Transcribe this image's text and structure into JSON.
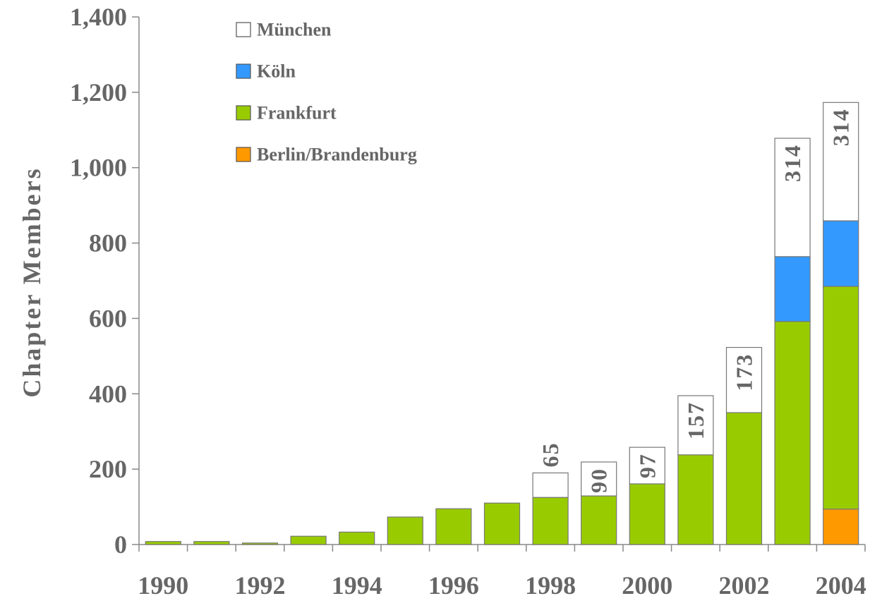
{
  "chart_data": {
    "type": "stacked_bar",
    "y_label": "Chapter Members",
    "categories": [
      "1990",
      null,
      "1992",
      null,
      "1994",
      null,
      "1996",
      null,
      "1998",
      null,
      "2000",
      null,
      "2002",
      null,
      "2004"
    ],
    "series": [
      {
        "name": "Berlin/Brandenburg",
        "color": "#ff9900",
        "values": [
          null,
          null,
          null,
          null,
          null,
          null,
          null,
          null,
          null,
          null,
          null,
          null,
          null,
          null,
          94
        ]
      },
      {
        "name": "Frankfurt",
        "color": "#99cc00",
        "values": [
          8,
          8,
          4,
          22,
          33,
          73,
          95,
          110,
          125,
          129,
          161,
          238,
          350,
          592,
          591
        ]
      },
      {
        "name": "Köln",
        "color": "#3399ff",
        "values": [
          null,
          null,
          null,
          null,
          null,
          null,
          null,
          null,
          null,
          null,
          null,
          null,
          null,
          172,
          174
        ]
      },
      {
        "name": "München",
        "color": "#ffffff",
        "values": [
          null,
          null,
          null,
          null,
          null,
          null,
          null,
          null,
          65,
          90,
          97,
          157,
          173,
          314,
          314
        ]
      }
    ],
    "ylim": [
      0,
      1400
    ],
    "yticks": [
      0,
      200,
      400,
      600,
      800,
      {
        "value": 1000,
        "label": "1,000"
      },
      {
        "value": 1200,
        "label": "1,200"
      },
      {
        "value": 1400,
        "label": "1,400"
      }
    ]
  }
}
